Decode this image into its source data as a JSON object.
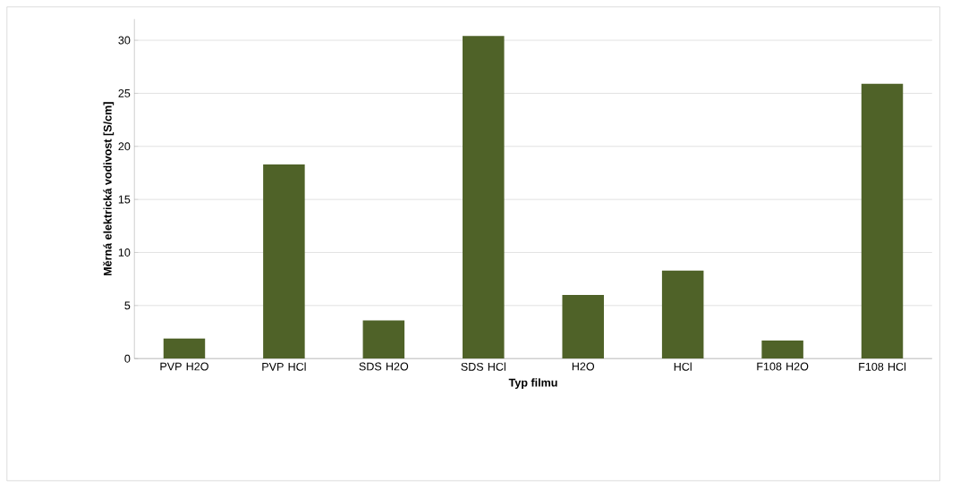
{
  "chart_data": {
    "type": "bar",
    "xlabel": "Typ filmu",
    "ylabel": "Měrná elektrická vodivost [S/cm]",
    "categories": [
      "PVP H2O",
      "PVP HCl",
      "SDS H2O",
      "SDS HCl",
      "H2O",
      "HCl",
      "F108 H2O",
      "F108 HCl"
    ],
    "values": [
      1.9,
      18.3,
      3.6,
      30.4,
      6.0,
      8.3,
      1.7,
      25.9
    ],
    "color": "#4f6228",
    "ylim": [
      0,
      32
    ],
    "yticks": [
      0,
      5,
      10,
      15,
      20,
      25,
      30
    ],
    "grid": "y"
  }
}
